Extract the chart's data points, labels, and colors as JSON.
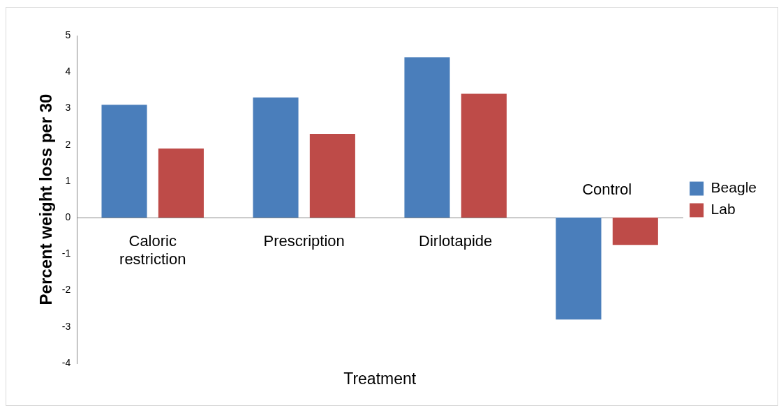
{
  "chart_data": {
    "type": "bar",
    "ylabel": "Percent weight loss per 30",
    "xlabel": "Treatment",
    "categories": [
      "Caloric restriction",
      "Prescription",
      "Dirlotapide",
      "Control"
    ],
    "series": [
      {
        "name": "Beagle",
        "color": "#4a7ebb",
        "values": [
          3.1,
          3.3,
          4.4,
          -2.8
        ]
      },
      {
        "name": "Lab",
        "color": "#be4b48",
        "values": [
          1.9,
          2.3,
          3.4,
          -0.75
        ]
      }
    ],
    "ylim": [
      -4,
      5
    ],
    "yticks": [
      -4,
      -3,
      -2,
      -1,
      0,
      1,
      2,
      3,
      4,
      5
    ],
    "grid": false,
    "legend": "right"
  }
}
